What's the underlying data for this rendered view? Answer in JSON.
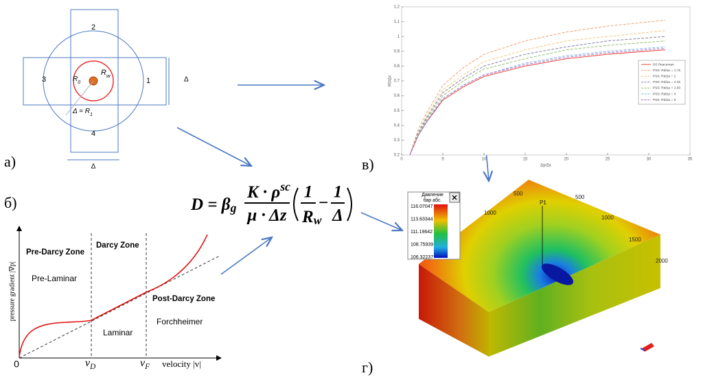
{
  "panel_a": {
    "label": "а)",
    "cells": [
      "1",
      "2",
      "3",
      "4"
    ],
    "r0": {
      "main": "R",
      "sub": "0"
    },
    "rw": {
      "main": "R",
      "sub": "w"
    },
    "r1": {
      "main": "Δ = R",
      "sub": "1"
    },
    "delta_right": "Δ",
    "delta_bottom": "Δ"
  },
  "panel_b": {
    "label": "б)",
    "y_label": "pressure gradient |∇p|",
    "x_label": "velocity |v|",
    "zones": [
      "Pre-Darcy Zone",
      "Darcy Zone",
      "Post-Darcy Zone"
    ],
    "regimes": [
      "Pre-Laminar",
      "Laminar",
      "Forchheimer"
    ],
    "origin": "0",
    "vd": {
      "main": "v",
      "sub": "D"
    },
    "vf": {
      "main": "v",
      "sub": "F"
    }
  },
  "formula": {
    "lhs": "D = β",
    "lhs_sub": "g",
    "num": "K · ρ",
    "num_sup": "sc",
    "den": "μ · Δz",
    "one_a": "1",
    "rw": {
      "main": "R",
      "sub": "w"
    },
    "minus": "−",
    "one_b": "1",
    "delta": "Δ"
  },
  "panel_v_label": "в)",
  "chart_data": {
    "type": "line",
    "x_label": "Δy/Δx",
    "y_label": "R0/Δx",
    "x": [
      1,
      2,
      3,
      5,
      7.5,
      10,
      15,
      20,
      25,
      32
    ],
    "xlim": [
      0,
      35
    ],
    "xticks": [
      0,
      5,
      10,
      15,
      20,
      25,
      30,
      35
    ],
    "ylim": [
      0.2,
      1.2
    ],
    "yticks": [
      0.2,
      0.3,
      0.4,
      0.5,
      0.6,
      0.7,
      0.8,
      0.9,
      1,
      1.1,
      1.2
    ],
    "series": [
      {
        "name": "SS Peaceman",
        "color": "#e8403a",
        "dash": false,
        "values": [
          0.2,
          0.33,
          0.42,
          0.57,
          0.66,
          0.73,
          0.8,
          0.85,
          0.88,
          0.91
        ]
      },
      {
        "name": "PSS: Rd/Δx = 1.75",
        "color": "#f0a070",
        "dash": true,
        "values": [
          0.2,
          0.37,
          0.48,
          0.67,
          0.79,
          0.88,
          0.97,
          1.03,
          1.07,
          1.11
        ]
      },
      {
        "name": "PSS: Rd/Δx = 2",
        "color": "#f5c880",
        "dash": true,
        "values": [
          0.2,
          0.35,
          0.46,
          0.64,
          0.74,
          0.83,
          0.91,
          0.97,
          1.0,
          1.04
        ]
      },
      {
        "name": "PSS: Rd/Δx = 2.25",
        "color": "#8080a0",
        "dash": true,
        "values": [
          0.2,
          0.35,
          0.45,
          0.62,
          0.72,
          0.8,
          0.88,
          0.93,
          0.97,
          1.0
        ]
      },
      {
        "name": "PSS: Rd/Δx = 2.50",
        "color": "#90c070",
        "dash": true,
        "values": [
          0.2,
          0.34,
          0.44,
          0.6,
          0.7,
          0.78,
          0.85,
          0.91,
          0.94,
          0.97
        ]
      },
      {
        "name": "PSS: Rd/Δx = 4",
        "color": "#80b0e0",
        "dash": true,
        "values": [
          0.2,
          0.33,
          0.43,
          0.58,
          0.67,
          0.74,
          0.82,
          0.87,
          0.9,
          0.93
        ]
      },
      {
        "name": "PSS: Rd/Δx = 5",
        "color": "#a070c0",
        "dash": true,
        "values": [
          0.2,
          0.33,
          0.42,
          0.58,
          0.67,
          0.74,
          0.81,
          0.86,
          0.89,
          0.92
        ]
      }
    ]
  },
  "panel_g": {
    "label": "г)",
    "legend_title": [
      "Давление",
      "бар абс."
    ],
    "legend_values": [
      116.07047,
      113.63344,
      111.19642,
      108.75939,
      106.32237
    ],
    "axis_left": [
      500,
      1000
    ],
    "axis_right": [
      500,
      1000,
      1500,
      2000
    ],
    "well": "P1"
  }
}
